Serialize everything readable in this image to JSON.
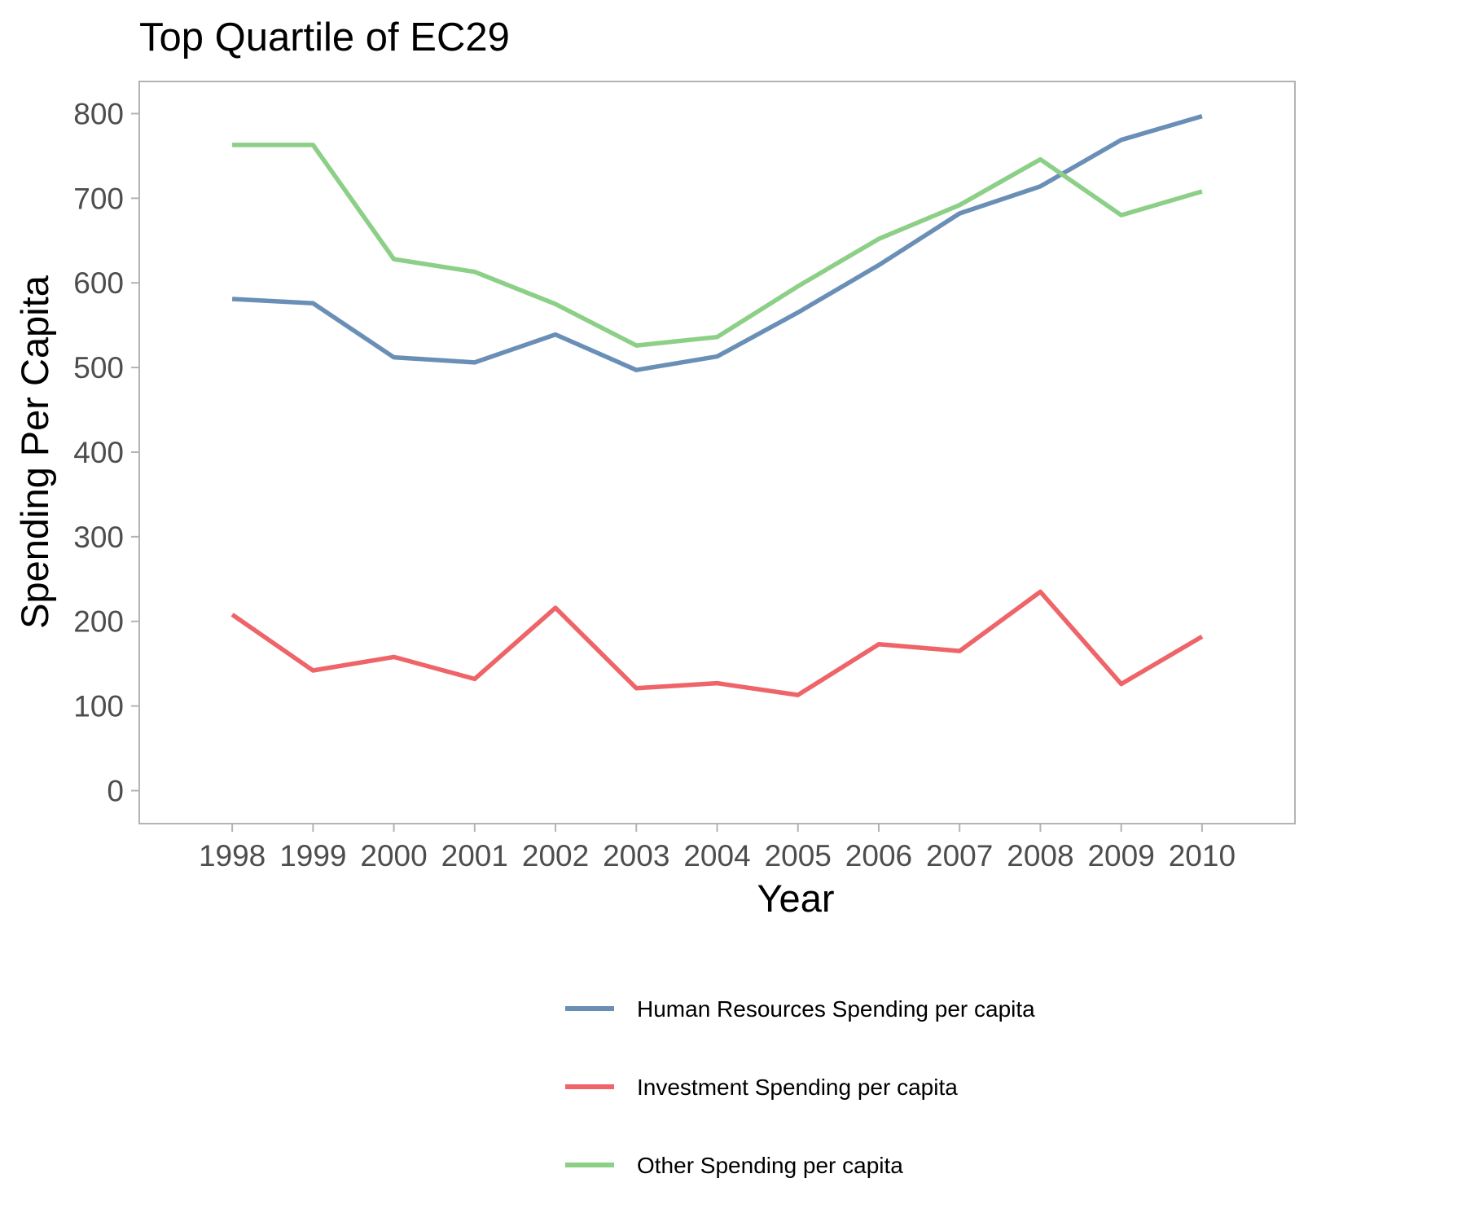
{
  "chart_data": {
    "type": "line",
    "title": "Top Quartile of EC29",
    "xlabel": "Year",
    "ylabel": "Spending Per Capita",
    "x": [
      1998,
      1999,
      2000,
      2001,
      2002,
      2003,
      2004,
      2005,
      2006,
      2007,
      2008,
      2009,
      2010
    ],
    "x_tick_labels": [
      "1998",
      "1999",
      "2000",
      "2001",
      "2002",
      "2003",
      "2004",
      "2005",
      "2006",
      "2007",
      "2008",
      "2009",
      "2010"
    ],
    "xlim": [
      1996.85,
      2011.15
    ],
    "ylim": [
      -39,
      838
    ],
    "y_ticks": [
      0,
      100,
      200,
      300,
      400,
      500,
      600,
      700,
      800
    ],
    "y_tick_labels": [
      "0",
      "100",
      "200",
      "300",
      "400",
      "500",
      "600",
      "700",
      "800"
    ],
    "grid": false,
    "legend_position": "bottom",
    "series": [
      {
        "name": "Human Resources Spending per capita",
        "color": "#6a8fb7",
        "values": [
          581,
          576,
          512,
          506,
          539,
          497,
          513,
          565,
          621,
          682,
          714,
          769,
          797
        ]
      },
      {
        "name": "Investment Spending per capita",
        "color": "#ee6468",
        "values": [
          208,
          142,
          158,
          132,
          216,
          121,
          127,
          113,
          173,
          165,
          235,
          126,
          182
        ]
      },
      {
        "name": "Other Spending per capita",
        "color": "#8ccf87",
        "values": [
          763,
          763,
          628,
          613,
          575,
          526,
          536,
          596,
          652,
          692,
          746,
          680,
          708
        ]
      }
    ]
  }
}
